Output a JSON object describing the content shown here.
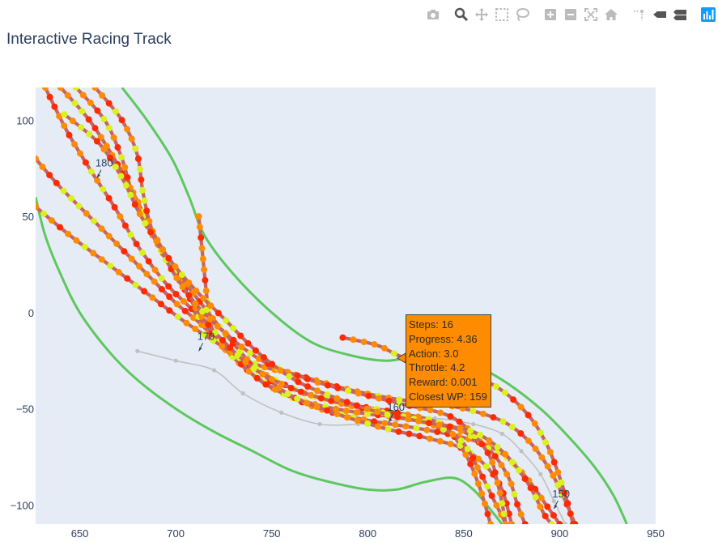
{
  "title": "Interactive Racing Track",
  "modebar": {
    "buttons": [
      {
        "name": "camera-icon"
      },
      {
        "name": "zoom-icon",
        "active": true
      },
      {
        "name": "pan-icon"
      },
      {
        "name": "box-select-icon"
      },
      {
        "name": "lasso-select-icon"
      },
      {
        "name": "zoom-in-icon"
      },
      {
        "name": "zoom-out-icon"
      },
      {
        "name": "autoscale-icon"
      },
      {
        "name": "reset-axes-icon"
      },
      {
        "name": "spike-lines-icon"
      },
      {
        "name": "hover-closest-icon"
      },
      {
        "name": "hover-compare-icon"
      },
      {
        "name": "plotly-logo-icon"
      }
    ]
  },
  "colors": {
    "plot_bg": "#e5ecf6",
    "border": "#5ec75e",
    "centerline": "#c0c0c0",
    "trajectory": "#c46464",
    "point_low": "#ff2a00",
    "point_mid": "#ff8c00",
    "point_high": "#d9f21c",
    "hover_bg": "#ff8c00"
  },
  "hover": {
    "lines": [
      "Steps: 16",
      "Progress: 4.36",
      "Action: 3.0",
      "Throttle: 4.2",
      "Reward: 0.001",
      "Closest WP: 159"
    ]
  },
  "chart_data": {
    "type": "scatter",
    "title": "Interactive Racing Track",
    "xlabel": "",
    "ylabel": "",
    "xlim": [
      627,
      950
    ],
    "ylim": [
      -110,
      117
    ],
    "x_ticks": [
      650,
      700,
      750,
      800,
      850,
      900,
      950
    ],
    "y_ticks": [
      100,
      50,
      0,
      -50,
      -100
    ],
    "grid": false,
    "track_borders": [
      [
        [
          672,
          117
        ],
        [
          685,
          100
        ],
        [
          698,
          80
        ],
        [
          707,
          60
        ],
        [
          715,
          40
        ],
        [
          730,
          20
        ],
        [
          750,
          0
        ],
        [
          770,
          -15
        ],
        [
          790,
          -22
        ],
        [
          810,
          -25
        ],
        [
          830,
          -22
        ],
        [
          850,
          -25
        ],
        [
          870,
          -35
        ],
        [
          890,
          -50
        ],
        [
          905,
          -65
        ],
        [
          918,
          -80
        ],
        [
          928,
          -95
        ],
        [
          935,
          -110
        ]
      ],
      [
        [
          627,
          60
        ],
        [
          632,
          40
        ],
        [
          640,
          20
        ],
        [
          650,
          0
        ],
        [
          665,
          -20
        ],
        [
          680,
          -35
        ],
        [
          700,
          -50
        ],
        [
          720,
          -62
        ],
        [
          740,
          -72
        ],
        [
          760,
          -82
        ],
        [
          780,
          -88
        ],
        [
          800,
          -92
        ],
        [
          815,
          -92
        ],
        [
          830,
          -88
        ],
        [
          845,
          -86
        ],
        [
          855,
          -92
        ],
        [
          862,
          -100
        ],
        [
          870,
          -110
        ]
      ]
    ],
    "centerline": [
      [
        680,
        -20
      ],
      [
        700,
        -25
      ],
      [
        720,
        -30
      ],
      [
        735,
        -42
      ],
      [
        755,
        -52
      ],
      [
        775,
        -58
      ],
      [
        795,
        -58
      ],
      [
        815,
        -56
      ],
      [
        835,
        -55
      ],
      [
        855,
        -58
      ],
      [
        870,
        -63
      ],
      [
        880,
        -72
      ],
      [
        890,
        -84
      ],
      [
        897,
        -98
      ],
      [
        903,
        -110
      ]
    ],
    "waypoint_labels": [
      {
        "text": "180",
        "x": 659,
        "y": 70
      },
      {
        "text": "170",
        "x": 712,
        "y": -20
      },
      {
        "text": "160",
        "x": 811,
        "y": -57
      },
      {
        "text": "150",
        "x": 897,
        "y": -102
      }
    ],
    "trajectories": [
      [
        [
          712,
          50
        ],
        [
          714,
          30
        ],
        [
          716,
          10
        ],
        [
          718,
          -5
        ],
        [
          722,
          -15
        ],
        [
          730,
          -22
        ],
        [
          745,
          -28
        ],
        [
          765,
          -33
        ],
        [
          790,
          -40
        ],
        [
          815,
          -45
        ],
        [
          840,
          -48
        ],
        [
          858,
          -52
        ],
        [
          873,
          -58
        ],
        [
          885,
          -68
        ],
        [
          895,
          -82
        ],
        [
          903,
          -98
        ],
        [
          908,
          -110
        ]
      ],
      [
        [
          627,
          80
        ],
        [
          640,
          65
        ],
        [
          655,
          50
        ],
        [
          670,
          35
        ],
        [
          685,
          20
        ],
        [
          700,
          5
        ],
        [
          712,
          -5
        ],
        [
          722,
          -15
        ],
        [
          735,
          -28
        ],
        [
          752,
          -40
        ],
        [
          775,
          -50
        ],
        [
          800,
          -56
        ],
        [
          825,
          -60
        ],
        [
          850,
          -65
        ],
        [
          868,
          -72
        ],
        [
          882,
          -85
        ],
        [
          893,
          -100
        ],
        [
          900,
          -110
        ]
      ],
      [
        [
          632,
          117
        ],
        [
          643,
          95
        ],
        [
          655,
          75
        ],
        [
          668,
          55
        ],
        [
          680,
          35
        ],
        [
          695,
          15
        ],
        [
          710,
          0
        ],
        [
          722,
          -15
        ],
        [
          732,
          -25
        ],
        [
          748,
          -38
        ],
        [
          770,
          -47
        ],
        [
          795,
          -52
        ],
        [
          820,
          -55
        ],
        [
          845,
          -60
        ],
        [
          862,
          -70
        ],
        [
          873,
          -85
        ],
        [
          878,
          -100
        ],
        [
          882,
          -110
        ]
      ],
      [
        [
          640,
          117
        ],
        [
          655,
          100
        ],
        [
          668,
          80
        ],
        [
          678,
          62
        ],
        [
          688,
          42
        ],
        [
          700,
          22
        ],
        [
          713,
          5
        ],
        [
          725,
          -10
        ],
        [
          738,
          -25
        ],
        [
          758,
          -42
        ],
        [
          782,
          -52
        ],
        [
          808,
          -60
        ],
        [
          830,
          -65
        ],
        [
          852,
          -72
        ],
        [
          868,
          -88
        ],
        [
          875,
          -110
        ]
      ],
      [
        [
          627,
          55
        ],
        [
          645,
          40
        ],
        [
          665,
          25
        ],
        [
          685,
          10
        ],
        [
          705,
          -5
        ],
        [
          728,
          -20
        ],
        [
          748,
          -33
        ],
        [
          770,
          -43
        ],
        [
          792,
          -48
        ],
        [
          815,
          -52
        ],
        [
          838,
          -58
        ],
        [
          850,
          -72
        ],
        [
          858,
          -90
        ],
        [
          864,
          -110
        ]
      ],
      [
        [
          648,
          117
        ],
        [
          663,
          100
        ],
        [
          672,
          80
        ],
        [
          678,
          60
        ],
        [
          688,
          40
        ],
        [
          700,
          20
        ],
        [
          712,
          0
        ],
        [
          725,
          -15
        ],
        [
          742,
          -30
        ],
        [
          762,
          -40
        ],
        [
          785,
          -47
        ],
        [
          808,
          -52
        ],
        [
          830,
          -57
        ],
        [
          848,
          -66
        ],
        [
          858,
          -82
        ],
        [
          866,
          -98
        ],
        [
          872,
          -110
        ]
      ],
      [
        [
          658,
          117
        ],
        [
          672,
          100
        ],
        [
          680,
          82
        ],
        [
          683,
          62
        ],
        [
          688,
          42
        ],
        [
          698,
          22
        ],
        [
          710,
          5
        ],
        [
          725,
          -10
        ],
        [
          745,
          -25
        ],
        [
          770,
          -35
        ],
        [
          795,
          -42
        ],
        [
          820,
          -48
        ],
        [
          845,
          -55
        ],
        [
          862,
          -72
        ],
        [
          868,
          -90
        ],
        [
          872,
          -110
        ]
      ],
      [
        [
          642,
          103
        ],
        [
          660,
          88
        ],
        [
          672,
          70
        ],
        [
          682,
          50
        ],
        [
          695,
          30
        ],
        [
          710,
          12
        ],
        [
          725,
          -3
        ],
        [
          742,
          -20
        ],
        [
          762,
          -35
        ],
        [
          785,
          -45
        ],
        [
          810,
          -53
        ],
        [
          835,
          -58
        ],
        [
          855,
          -62
        ],
        [
          870,
          -72
        ],
        [
          883,
          -88
        ],
        [
          892,
          -105
        ],
        [
          896,
          -110
        ]
      ],
      [
        [
          787,
          -13
        ],
        [
          805,
          -17
        ],
        [
          818,
          -23
        ],
        [
          838,
          -27
        ],
        [
          858,
          -34
        ],
        [
          872,
          -42
        ],
        [
          885,
          -55
        ],
        [
          893,
          -68
        ],
        [
          898,
          -80
        ],
        [
          903,
          -95
        ],
        [
          907,
          -110
        ]
      ]
    ]
  }
}
